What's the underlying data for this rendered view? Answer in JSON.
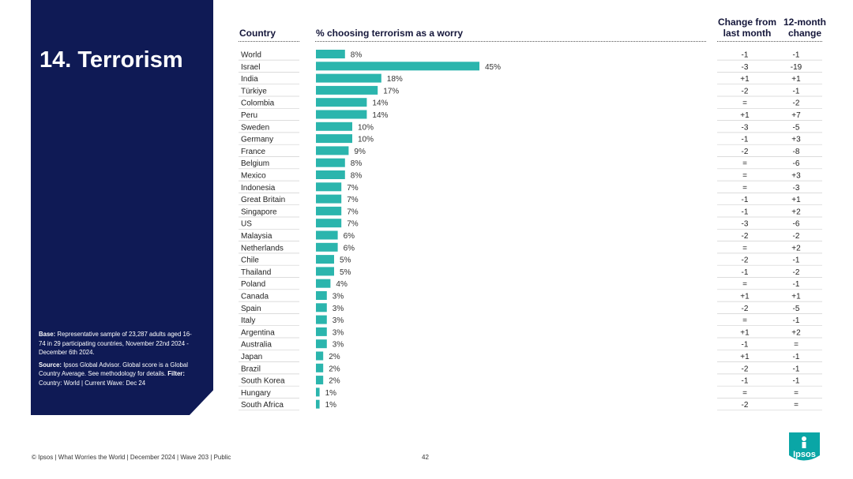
{
  "title": "14. Terrorism",
  "notes": {
    "base_label": "Base:",
    "base_text": "Representative sample of 23,287 adults aged 16-74 in 29 participating countries, November 22nd 2024 - December 6th 2024.",
    "source_label": "Source:",
    "source_text": "Ipsos Global Advisor. Global score is a Global Country Average. See methodology for details.",
    "filter_label": "Filter:",
    "filter_text": "Country: World | Current Wave: Dec 24"
  },
  "headers": {
    "country": "Country",
    "pct": "% choosing terrorism as a worry",
    "change_month_line1": "Change from",
    "change_month_line2": "last month",
    "change_year_line1": "12-month",
    "change_year_line2": "change"
  },
  "footer": {
    "left": "© Ipsos | What Worries the World | December 2024 | Wave 203 | Public",
    "page": "42"
  },
  "logo_text": "Ipsos",
  "colors": {
    "bar": "#2bb5ad",
    "panel": "#0f1a55",
    "logo": "#0aa6a6"
  },
  "chart_data": {
    "type": "bar",
    "orientation": "horizontal",
    "categories": [
      "World",
      "Israel",
      "India",
      "Türkiye",
      "Colombia",
      "Peru",
      "Sweden",
      "Germany",
      "France",
      "Belgium",
      "Mexico",
      "Indonesia",
      "Great Britain",
      "Singapore",
      "US",
      "Malaysia",
      "Netherlands",
      "Chile",
      "Thailand",
      "Poland",
      "Canada",
      "Spain",
      "Italy",
      "Argentina",
      "Australia",
      "Japan",
      "Brazil",
      "South Korea",
      "Hungary",
      "South Africa"
    ],
    "values": [
      8,
      45,
      18,
      17,
      14,
      14,
      10,
      10,
      9,
      8,
      8,
      7,
      7,
      7,
      7,
      6,
      6,
      5,
      5,
      4,
      3,
      3,
      3,
      3,
      3,
      2,
      2,
      2,
      1,
      1
    ],
    "labels": [
      "8%",
      "45%",
      "18%",
      "17%",
      "14%",
      "14%",
      "10%",
      "10%",
      "9%",
      "8%",
      "8%",
      "7%",
      "7%",
      "7%",
      "7%",
      "6%",
      "6%",
      "5%",
      "5%",
      "4%",
      "3%",
      "3%",
      "3%",
      "3%",
      "3%",
      "2%",
      "2%",
      "2%",
      "1%",
      "1%"
    ],
    "change_from_last_month": [
      "-1",
      "-3",
      "+1",
      "-2",
      "=",
      "+1",
      "-3",
      "-1",
      "-2",
      "=",
      "=",
      "=",
      "-1",
      "-1",
      "-3",
      "-2",
      "=",
      "-2",
      "-1",
      "=",
      "+1",
      "-2",
      "=",
      "+1",
      "-1",
      "+1",
      "-2",
      "-1",
      "=",
      "-2"
    ],
    "change_12_month": [
      "-1",
      "-19",
      "+1",
      "-1",
      "-2",
      "+7",
      "-5",
      "+3",
      "-8",
      "-6",
      "+3",
      "-3",
      "+1",
      "+2",
      "-6",
      "-2",
      "+2",
      "-1",
      "-2",
      "-1",
      "+1",
      "-5",
      "-1",
      "+2",
      "=",
      "-1",
      "-1",
      "-1",
      "=",
      "="
    ],
    "xlabel": "% choosing terrorism as a worry",
    "ylabel": "Country",
    "xlim": [
      0,
      45
    ]
  }
}
